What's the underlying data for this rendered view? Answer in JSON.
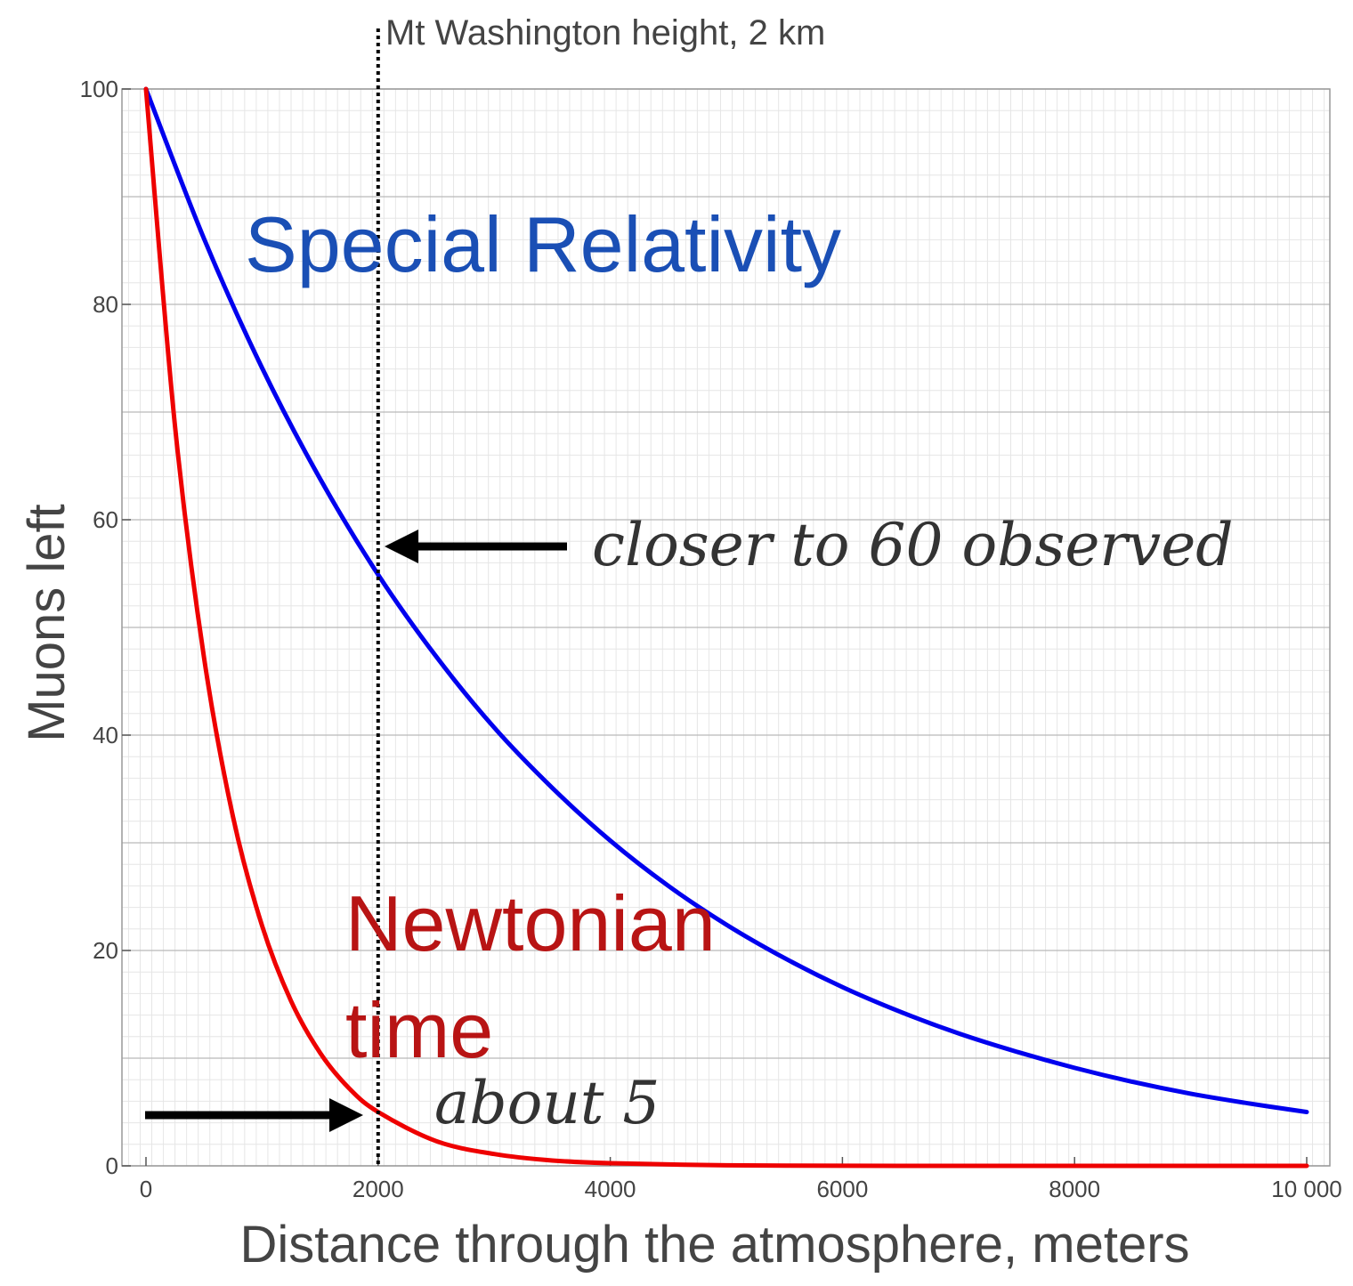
{
  "chart_data": {
    "type": "line",
    "xlabel": "Distance through the atmosphere, meters",
    "ylabel": "Muons left",
    "xlim": [
      0,
      10000
    ],
    "ylim": [
      0,
      100
    ],
    "x_ticks": [
      0,
      2000,
      4000,
      6000,
      8000,
      10000
    ],
    "x_tick_labels": [
      "0",
      "2000",
      "4000",
      "6000",
      "8000",
      "10 000"
    ],
    "y_ticks": [
      0,
      20,
      40,
      60,
      80,
      100
    ],
    "y_tick_labels": [
      "0",
      "20",
      "40",
      "60",
      "80",
      "100"
    ],
    "grid": true,
    "series": [
      {
        "name": "Special Relativity",
        "color": "#0000ee",
        "x": [
          0,
          500,
          1000,
          1500,
          2000,
          2500,
          3000,
          3500,
          4000,
          4500,
          5000,
          5500,
          6000,
          6500,
          7000,
          7500,
          8000,
          8500,
          9000,
          9500,
          10000
        ],
        "y": [
          100,
          86.1,
          74.1,
          63.8,
          54.9,
          47.3,
          40.7,
          35.1,
          30.2,
          26.0,
          22.4,
          19.3,
          16.6,
          14.3,
          12.3,
          10.6,
          9.1,
          7.8,
          6.7,
          5.8,
          5.0
        ]
      },
      {
        "name": "Newtonian time",
        "color": "#ee0000",
        "x": [
          0,
          250,
          500,
          750,
          1000,
          1250,
          1500,
          1750,
          2000,
          2500,
          3000,
          3500,
          4000,
          5000,
          6000,
          7000,
          8000,
          9000,
          10000
        ],
        "y": [
          100,
          68.7,
          47.2,
          32.4,
          22.3,
          15.3,
          10.5,
          7.2,
          5.0,
          2.3,
          1.1,
          0.5,
          0.25,
          0.05,
          0.01,
          0,
          0,
          0,
          0
        ]
      }
    ],
    "vline": {
      "x": 2000,
      "label": "Mt Washington height, 2 km",
      "style": "dotted"
    },
    "annotations": {
      "special_relativity": {
        "text": "Special Relativity",
        "color": "#1a4fb5"
      },
      "newtonian_line1": {
        "text": "Newtonian",
        "color": "#b81414"
      },
      "newtonian_line2": {
        "text": "time",
        "color": "#b81414"
      },
      "closer": {
        "text": "closer to 60 observed"
      },
      "about": {
        "text": "about 5"
      }
    }
  }
}
